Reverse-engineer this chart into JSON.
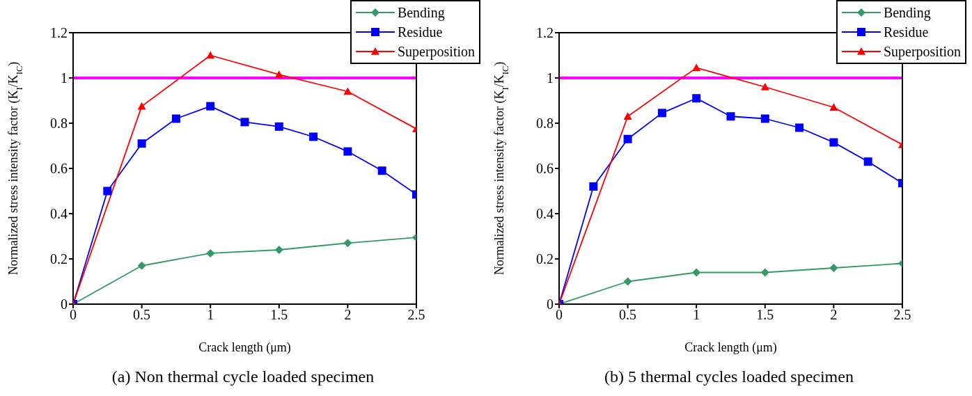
{
  "chart_data": [
    {
      "type": "line",
      "title": "(a) Non thermal cycle loaded specimen",
      "xlabel": "Crack length  (μm)",
      "ylabel": "Normalized stress intensity factor  (K$_{I}$/K$_{IC}$)",
      "xlim": [
        0,
        2.5
      ],
      "xticks": [
        0,
        0.5,
        1,
        1.5,
        2,
        2.5
      ],
      "ylim": [
        0,
        1.2
      ],
      "yticks": [
        0,
        0.2,
        0.4,
        0.6,
        0.8,
        1,
        1.2
      ],
      "grid": false,
      "legend": "top right",
      "ref_lines": [
        {
          "axis": "y",
          "value": 1,
          "color": "#ff00ff"
        }
      ],
      "series": [
        {
          "name": "Bending",
          "color": "#339966",
          "marker": "diamond",
          "x": [
            0,
            0.5,
            1,
            1.5,
            2,
            2.5
          ],
          "values": [
            0,
            0.17,
            0.225,
            0.24,
            0.27,
            0.295
          ]
        },
        {
          "name": "Residue",
          "color": "#0000ff",
          "marker": "square",
          "x": [
            0,
            0.25,
            0.5,
            0.75,
            1,
            1.25,
            1.5,
            1.75,
            2,
            2.25,
            2.5
          ],
          "values": [
            0,
            0.5,
            0.71,
            0.82,
            0.875,
            0.805,
            0.785,
            0.74,
            0.675,
            0.59,
            0.485
          ]
        },
        {
          "name": "Superposition",
          "color": "#ff0000",
          "marker": "triangle",
          "x": [
            0,
            0.5,
            1,
            1.5,
            2,
            2.5
          ],
          "values": [
            0,
            0.875,
            1.1,
            1.015,
            0.94,
            0.775
          ]
        }
      ]
    },
    {
      "type": "line",
      "title": "(b) 5 thermal cycles loaded specimen",
      "xlabel": "Crack length  (μm)",
      "ylabel": "Normalized stress intensity factor  (K$_{I}$/K$_{IC}$)",
      "xlim": [
        0,
        2.5
      ],
      "xticks": [
        0,
        0.5,
        1,
        1.5,
        2,
        2.5
      ],
      "ylim": [
        0,
        1.2
      ],
      "yticks": [
        0,
        0.2,
        0.4,
        0.6,
        0.8,
        1,
        1.2
      ],
      "grid": false,
      "legend": "top right",
      "ref_lines": [
        {
          "axis": "y",
          "value": 1,
          "color": "#ff00ff"
        }
      ],
      "series": [
        {
          "name": "Bending",
          "color": "#339966",
          "marker": "diamond",
          "x": [
            0,
            0.5,
            1,
            1.5,
            2,
            2.5
          ],
          "values": [
            0,
            0.1,
            0.14,
            0.14,
            0.16,
            0.18
          ]
        },
        {
          "name": "Residue",
          "color": "#0000ff",
          "marker": "square",
          "x": [
            0,
            0.25,
            0.5,
            0.75,
            1,
            1.25,
            1.5,
            1.75,
            2,
            2.25,
            2.5
          ],
          "values": [
            0,
            0.52,
            0.73,
            0.845,
            0.91,
            0.83,
            0.82,
            0.78,
            0.715,
            0.63,
            0.535
          ]
        },
        {
          "name": "Superposition",
          "color": "#ff0000",
          "marker": "triangle",
          "x": [
            0,
            0.5,
            1,
            1.5,
            2,
            2.5
          ],
          "values": [
            0,
            0.83,
            1.045,
            0.96,
            0.87,
            0.705
          ]
        }
      ]
    }
  ]
}
